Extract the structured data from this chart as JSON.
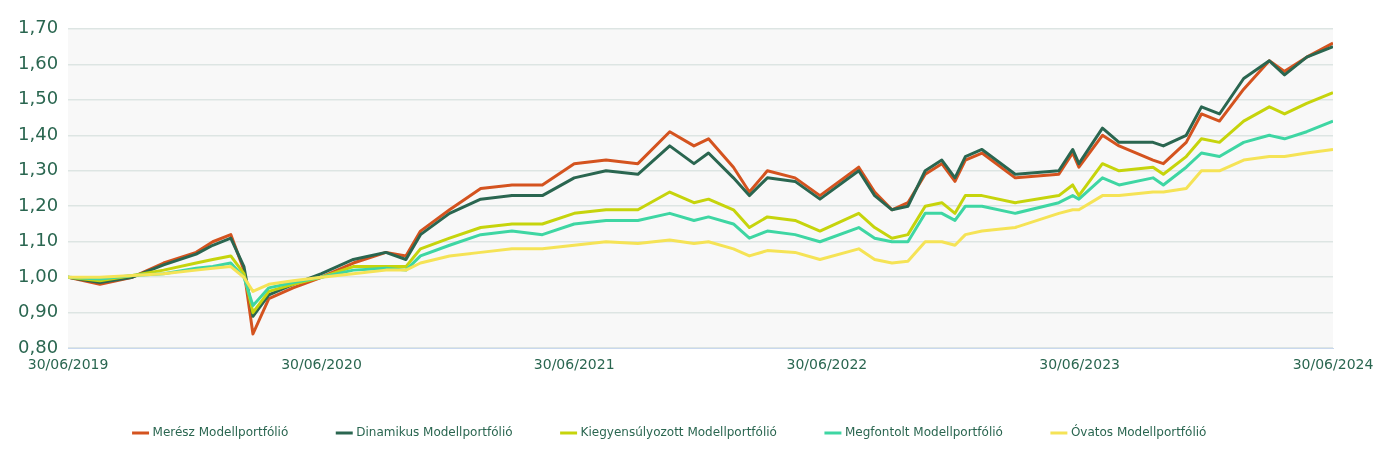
{
  "chart_data": {
    "type": "line",
    "x": [
      "2019-06-30",
      "2019-08-15",
      "2019-10-01",
      "2019-11-15",
      "2020-01-01",
      "2020-01-25",
      "2020-02-20",
      "2020-03-10",
      "2020-03-23",
      "2020-04-15",
      "2020-05-20",
      "2020-06-30",
      "2020-08-15",
      "2020-10-01",
      "2020-10-30",
      "2020-11-20",
      "2021-01-01",
      "2021-02-15",
      "2021-04-01",
      "2021-05-15",
      "2021-06-30",
      "2021-08-15",
      "2021-09-30",
      "2021-11-15",
      "2021-12-20",
      "2022-01-10",
      "2022-02-15",
      "2022-03-10",
      "2022-04-05",
      "2022-05-15",
      "2022-06-20",
      "2022-08-15",
      "2022-09-07",
      "2022-10-02",
      "2022-10-25",
      "2022-11-19",
      "2022-12-13",
      "2023-01-01",
      "2023-01-16",
      "2023-02-09",
      "2023-03-29",
      "2023-05-31",
      "2023-06-20",
      "2023-06-29",
      "2023-08-02",
      "2023-08-26",
      "2023-10-14",
      "2023-10-29",
      "2023-12-01",
      "2023-12-23",
      "2024-01-18",
      "2024-02-22",
      "2024-03-30",
      "2024-04-21",
      "2024-05-23",
      "2024-06-30"
    ],
    "series": [
      {
        "name": "Merész Modellportfólió",
        "color": "#d4531f",
        "values": [
          1.0,
          0.98,
          1.0,
          1.04,
          1.07,
          1.1,
          1.12,
          1.02,
          0.84,
          0.94,
          0.97,
          1.0,
          1.04,
          1.07,
          1.06,
          1.13,
          1.19,
          1.25,
          1.26,
          1.26,
          1.32,
          1.33,
          1.32,
          1.41,
          1.37,
          1.39,
          1.31,
          1.24,
          1.3,
          1.28,
          1.23,
          1.31,
          1.24,
          1.19,
          1.21,
          1.29,
          1.32,
          1.27,
          1.33,
          1.35,
          1.28,
          1.29,
          1.35,
          1.31,
          1.4,
          1.37,
          1.33,
          1.32,
          1.38,
          1.46,
          1.44,
          1.53,
          1.61,
          1.58,
          1.62,
          1.66
        ]
      },
      {
        "name": "Dinamikus Modellportfólió",
        "color": "#2a6650",
        "values": [
          1.0,
          0.985,
          1.0,
          1.035,
          1.065,
          1.09,
          1.11,
          1.03,
          0.89,
          0.95,
          0.98,
          1.01,
          1.05,
          1.07,
          1.05,
          1.12,
          1.18,
          1.22,
          1.23,
          1.23,
          1.28,
          1.3,
          1.29,
          1.37,
          1.32,
          1.35,
          1.28,
          1.23,
          1.28,
          1.27,
          1.22,
          1.3,
          1.23,
          1.19,
          1.2,
          1.3,
          1.33,
          1.28,
          1.34,
          1.36,
          1.29,
          1.3,
          1.36,
          1.32,
          1.42,
          1.38,
          1.38,
          1.37,
          1.4,
          1.48,
          1.46,
          1.56,
          1.61,
          1.57,
          1.62,
          1.65
        ]
      },
      {
        "name": "Kiegyensúlyozott Modellportfólió",
        "color": "#c6d40c",
        "values": [
          1.0,
          0.99,
          1.005,
          1.02,
          1.04,
          1.05,
          1.06,
          1.01,
          0.9,
          0.96,
          0.98,
          1.0,
          1.03,
          1.03,
          1.03,
          1.08,
          1.11,
          1.14,
          1.15,
          1.15,
          1.18,
          1.19,
          1.19,
          1.24,
          1.21,
          1.22,
          1.19,
          1.14,
          1.17,
          1.16,
          1.13,
          1.18,
          1.14,
          1.11,
          1.12,
          1.2,
          1.21,
          1.18,
          1.23,
          1.23,
          1.21,
          1.23,
          1.26,
          1.23,
          1.32,
          1.3,
          1.31,
          1.29,
          1.34,
          1.39,
          1.38,
          1.44,
          1.48,
          1.46,
          1.49,
          1.52
        ]
      },
      {
        "name": "Megfontolt Modellportfólió",
        "color": "#3ed6a3",
        "values": [
          1.0,
          0.995,
          1.005,
          1.01,
          1.025,
          1.03,
          1.04,
          1.0,
          0.92,
          0.97,
          0.985,
          1.0,
          1.02,
          1.025,
          1.02,
          1.06,
          1.09,
          1.12,
          1.13,
          1.12,
          1.15,
          1.16,
          1.16,
          1.18,
          1.16,
          1.17,
          1.15,
          1.11,
          1.13,
          1.12,
          1.1,
          1.14,
          1.11,
          1.1,
          1.1,
          1.18,
          1.18,
          1.16,
          1.2,
          1.2,
          1.18,
          1.21,
          1.23,
          1.22,
          1.28,
          1.26,
          1.28,
          1.26,
          1.31,
          1.35,
          1.34,
          1.38,
          1.4,
          1.39,
          1.41,
          1.44
        ]
      },
      {
        "name": "Óvatos Modellportfólió",
        "color": "#f5e356",
        "values": [
          1.0,
          1.0,
          1.005,
          1.01,
          1.02,
          1.025,
          1.03,
          1.0,
          0.96,
          0.98,
          0.99,
          1.0,
          1.01,
          1.02,
          1.02,
          1.04,
          1.06,
          1.07,
          1.08,
          1.08,
          1.09,
          1.1,
          1.095,
          1.105,
          1.095,
          1.1,
          1.08,
          1.06,
          1.075,
          1.07,
          1.05,
          1.08,
          1.05,
          1.04,
          1.045,
          1.1,
          1.1,
          1.09,
          1.12,
          1.13,
          1.14,
          1.18,
          1.19,
          1.19,
          1.23,
          1.23,
          1.24,
          1.24,
          1.25,
          1.3,
          1.3,
          1.33,
          1.34,
          1.34,
          1.35,
          1.36
        ]
      }
    ],
    "xlim": [
      "2019-06-30",
      "2024-06-30"
    ],
    "xticks": [
      {
        "value": "2019-06-30",
        "label": "30/06/2019"
      },
      {
        "value": "2020-06-30",
        "label": "30/06/2020"
      },
      {
        "value": "2021-06-30",
        "label": "30/06/2021"
      },
      {
        "value": "2022-06-30",
        "label": "30/06/2022"
      },
      {
        "value": "2023-06-30",
        "label": "30/06/2023"
      },
      {
        "value": "2024-06-30",
        "label": "30/06/2024"
      }
    ],
    "ylim": [
      0.8,
      1.7
    ],
    "yticks": [
      {
        "value": 0.8,
        "label": "0,80"
      },
      {
        "value": 0.9,
        "label": "0,90"
      },
      {
        "value": 1.0,
        "label": "1,00"
      },
      {
        "value": 1.1,
        "label": "1,10"
      },
      {
        "value": 1.2,
        "label": "1,20"
      },
      {
        "value": 1.3,
        "label": "1,30"
      },
      {
        "value": 1.4,
        "label": "1,40"
      },
      {
        "value": 1.5,
        "label": "1,50"
      },
      {
        "value": 1.6,
        "label": "1,60"
      },
      {
        "value": 1.7,
        "label": "1,70"
      }
    ],
    "grid": "y",
    "legend": "bottom",
    "marker": "none",
    "line_style": "solid"
  }
}
